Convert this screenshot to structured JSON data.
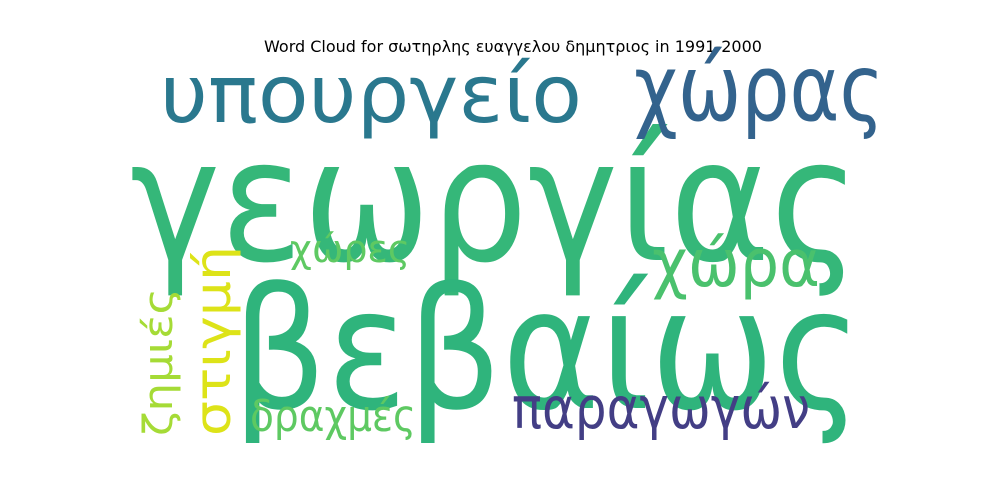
{
  "title": "Word Cloud for σωτηρλης ευαγγελου δημητριος in 1991-2000",
  "words": [
    {
      "text": "γεωργίας",
      "color": "#35b779"
    },
    {
      "text": "βεβαίως",
      "color": "#2fb47c"
    },
    {
      "text": "υπουργείο",
      "color": "#2a788e"
    },
    {
      "text": "χώρας",
      "color": "#33638d"
    },
    {
      "text": "χώρα",
      "color": "#4ac16d"
    },
    {
      "text": "παραγωγών",
      "color": "#433e85"
    },
    {
      "text": "χώρες",
      "color": "#5ec962"
    },
    {
      "text": "στιγμή",
      "color": "#dde318"
    },
    {
      "text": "ζημιές",
      "color": "#a5db36"
    },
    {
      "text": "δραχμές",
      "color": "#5ec962"
    }
  ]
}
